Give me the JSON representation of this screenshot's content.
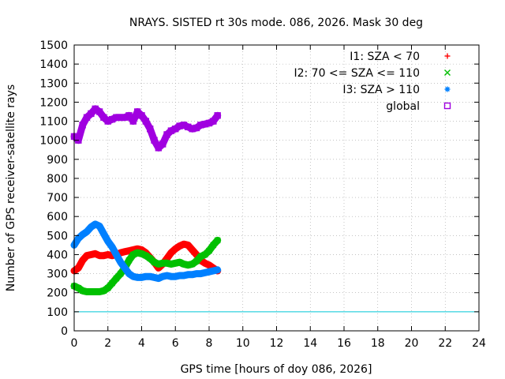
{
  "chart_data": {
    "type": "scatter",
    "title": "NRAYS. SISTED rt 30s mode. 086, 2026. Mask 30 deg",
    "xlabel": "GPS time [hours of doy 086, 2026]",
    "ylabel": "Number of GPS receiver-satellite rays",
    "xlim": [
      0,
      24
    ],
    "ylim": [
      0,
      1500
    ],
    "x_ticks": [
      "0",
      "2",
      "4",
      "6",
      "8",
      "10",
      "12",
      "14",
      "16",
      "18",
      "20",
      "22",
      "24"
    ],
    "y_ticks": [
      "0",
      "100",
      "200",
      "300",
      "400",
      "500",
      "600",
      "700",
      "800",
      "900",
      "1000",
      "1100",
      "1200",
      "1300",
      "1400",
      "1500"
    ],
    "grid": true,
    "legend_position": "top-right",
    "reference_line": {
      "y": 100,
      "color": "#00c8d8"
    },
    "series": [
      {
        "name": "I1: SZA < 70",
        "marker": "+",
        "color": "#ff0000",
        "x": [
          0.0,
          0.25,
          0.5,
          0.75,
          1.0,
          1.25,
          1.5,
          1.75,
          2.0,
          2.25,
          2.5,
          2.75,
          3.0,
          3.25,
          3.5,
          3.75,
          4.0,
          4.25,
          4.5,
          4.75,
          5.0,
          5.25,
          5.5,
          5.75,
          6.0,
          6.25,
          6.5,
          6.75,
          7.0,
          7.25,
          7.5,
          7.75,
          8.0,
          8.25,
          8.5
        ],
        "values": [
          315,
          330,
          370,
          395,
          400,
          405,
          395,
          395,
          400,
          395,
          400,
          410,
          415,
          420,
          425,
          430,
          425,
          410,
          385,
          360,
          330,
          350,
          380,
          410,
          430,
          445,
          455,
          450,
          425,
          400,
          370,
          355,
          345,
          330,
          315
        ]
      },
      {
        "name": "I2: 70 <= SZA <= 110",
        "marker": "x",
        "color": "#00c000",
        "x": [
          0.0,
          0.25,
          0.5,
          0.75,
          1.0,
          1.25,
          1.5,
          1.75,
          2.0,
          2.25,
          2.5,
          2.75,
          3.0,
          3.25,
          3.5,
          3.75,
          4.0,
          4.25,
          4.5,
          4.75,
          5.0,
          5.25,
          5.5,
          5.75,
          6.0,
          6.25,
          6.5,
          6.75,
          7.0,
          7.25,
          7.5,
          7.75,
          8.0,
          8.25,
          8.5
        ],
        "values": [
          235,
          225,
          210,
          205,
          205,
          205,
          205,
          210,
          225,
          250,
          275,
          300,
          330,
          370,
          400,
          410,
          405,
          395,
          380,
          360,
          350,
          355,
          355,
          350,
          355,
          360,
          350,
          345,
          350,
          365,
          390,
          400,
          420,
          450,
          475
        ]
      },
      {
        "name": "I3: SZA > 110",
        "marker": "*",
        "color": "#0080ff",
        "x": [
          0.0,
          0.25,
          0.5,
          0.75,
          1.0,
          1.25,
          1.5,
          1.75,
          2.0,
          2.25,
          2.5,
          2.75,
          3.0,
          3.25,
          3.5,
          3.75,
          4.0,
          4.25,
          4.5,
          4.75,
          5.0,
          5.25,
          5.5,
          5.75,
          6.0,
          6.25,
          6.5,
          6.75,
          7.0,
          7.25,
          7.5,
          7.75,
          8.0,
          8.25,
          8.5
        ],
        "values": [
          450,
          485,
          505,
          520,
          545,
          560,
          550,
          510,
          470,
          440,
          400,
          360,
          330,
          300,
          285,
          280,
          280,
          285,
          285,
          280,
          275,
          285,
          290,
          285,
          285,
          290,
          290,
          295,
          295,
          300,
          300,
          305,
          310,
          315,
          320
        ]
      },
      {
        "name": "global",
        "marker": "square",
        "color": "#a000e0",
        "x": [
          0.0,
          0.25,
          0.5,
          0.75,
          1.0,
          1.25,
          1.5,
          1.75,
          2.0,
          2.25,
          2.5,
          2.75,
          3.0,
          3.25,
          3.5,
          3.75,
          4.0,
          4.25,
          4.5,
          4.75,
          5.0,
          5.25,
          5.5,
          5.75,
          6.0,
          6.25,
          6.5,
          6.75,
          7.0,
          7.25,
          7.5,
          7.75,
          8.0,
          8.25,
          8.5
        ],
        "values": [
          1020,
          1000,
          1080,
          1120,
          1140,
          1165,
          1150,
          1120,
          1100,
          1110,
          1120,
          1120,
          1120,
          1130,
          1100,
          1150,
          1130,
          1100,
          1060,
          1000,
          960,
          980,
          1030,
          1050,
          1060,
          1075,
          1080,
          1070,
          1060,
          1065,
          1080,
          1085,
          1090,
          1100,
          1130
        ]
      }
    ]
  }
}
